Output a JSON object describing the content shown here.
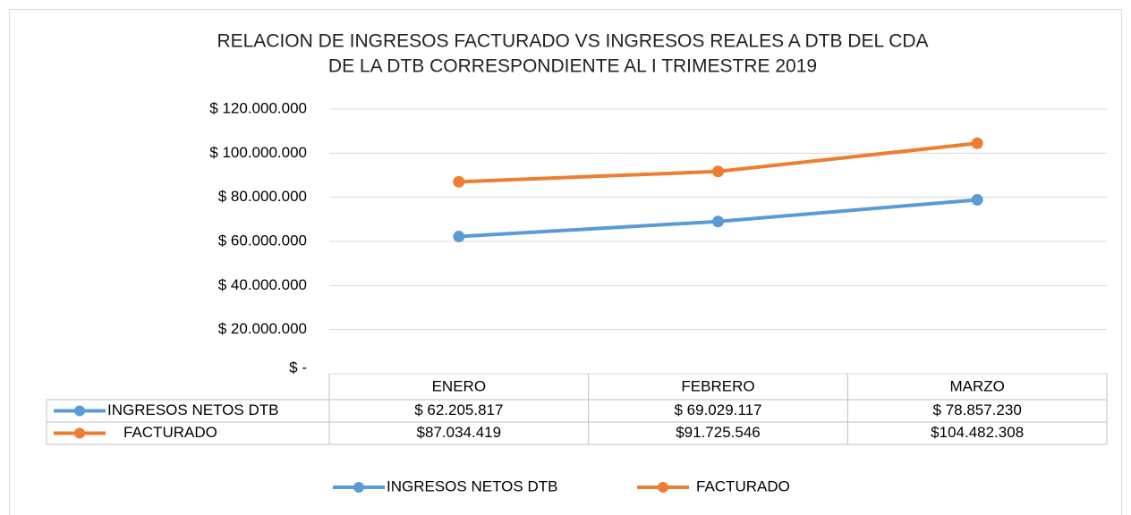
{
  "chart_data": {
    "type": "line",
    "title": [
      "RELACION DE INGRESOS FACTURADO VS INGRESOS REALES A DTB DEL CDA",
      "DE LA DTB CORRESPONDIENTE AL I TRIMESTRE 2019"
    ],
    "categories": [
      "ENERO",
      "FEBRERO",
      "MARZO"
    ],
    "series": [
      {
        "name": "INGRESOS NETOS DTB",
        "color": "#5b9bd5",
        "values": [
          62205817,
          69029117,
          78857230
        ],
        "value_labels": [
          "$ 62.205.817",
          "$ 69.029.117",
          "$ 78.857.230"
        ]
      },
      {
        "name": "FACTURADO",
        "color": "#ed7d31",
        "values": [
          87034419,
          91725546,
          104482308
        ],
        "value_labels": [
          "$87.034.419",
          "$91.725.546",
          "$104.482.308"
        ]
      }
    ],
    "ylim": [
      0,
      120000000
    ],
    "yticks": [
      {
        "value": 0,
        "label": "$ -"
      },
      {
        "value": 20000000,
        "label": "$ 20.000.000"
      },
      {
        "value": 40000000,
        "label": "$ 40.000.000"
      },
      {
        "value": 60000000,
        "label": "$ 60.000.000"
      },
      {
        "value": 80000000,
        "label": "$ 80.000.000"
      },
      {
        "value": 100000000,
        "label": "$ 100.000.000"
      },
      {
        "value": 120000000,
        "label": "$ 120.000.000"
      }
    ],
    "grid": true,
    "legend": "bottom",
    "data_table": true
  }
}
